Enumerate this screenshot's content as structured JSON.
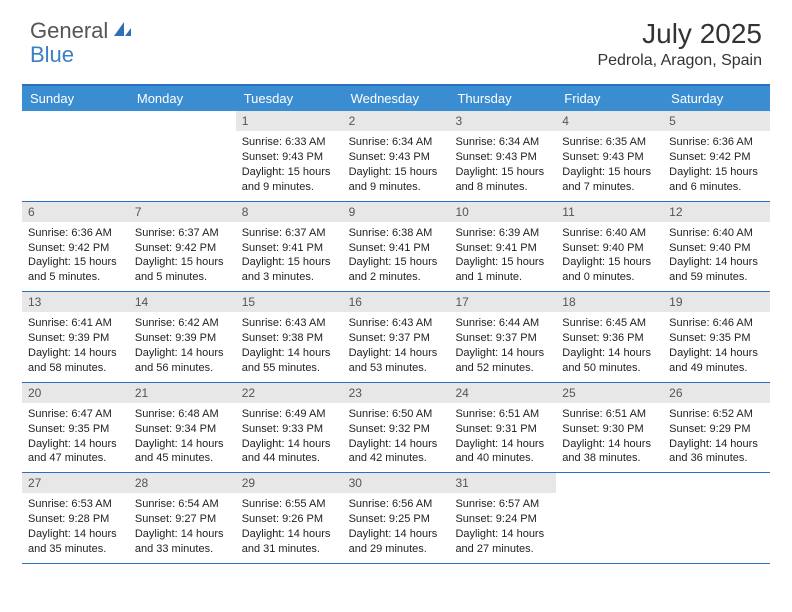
{
  "brand": {
    "part1": "General",
    "part2": "Blue"
  },
  "title": "July 2025",
  "location": "Pedrola, Aragon, Spain",
  "colors": {
    "header_bar": "#3b8dd1",
    "border": "#2b6fbf",
    "daynum_bg": "#e7e7e7",
    "brand_blue": "#3b7fc4",
    "text": "#333333"
  },
  "fonts": {
    "title_size": 28,
    "location_size": 16,
    "header_size": 13,
    "cell_size": 11
  },
  "day_headers": [
    "Sunday",
    "Monday",
    "Tuesday",
    "Wednesday",
    "Thursday",
    "Friday",
    "Saturday"
  ],
  "weeks": [
    [
      {
        "empty": true
      },
      {
        "empty": true
      },
      {
        "num": "1",
        "sunrise": "Sunrise: 6:33 AM",
        "sunset": "Sunset: 9:43 PM",
        "daylight": "Daylight: 15 hours and 9 minutes."
      },
      {
        "num": "2",
        "sunrise": "Sunrise: 6:34 AM",
        "sunset": "Sunset: 9:43 PM",
        "daylight": "Daylight: 15 hours and 9 minutes."
      },
      {
        "num": "3",
        "sunrise": "Sunrise: 6:34 AM",
        "sunset": "Sunset: 9:43 PM",
        "daylight": "Daylight: 15 hours and 8 minutes."
      },
      {
        "num": "4",
        "sunrise": "Sunrise: 6:35 AM",
        "sunset": "Sunset: 9:43 PM",
        "daylight": "Daylight: 15 hours and 7 minutes."
      },
      {
        "num": "5",
        "sunrise": "Sunrise: 6:36 AM",
        "sunset": "Sunset: 9:42 PM",
        "daylight": "Daylight: 15 hours and 6 minutes."
      }
    ],
    [
      {
        "num": "6",
        "sunrise": "Sunrise: 6:36 AM",
        "sunset": "Sunset: 9:42 PM",
        "daylight": "Daylight: 15 hours and 5 minutes."
      },
      {
        "num": "7",
        "sunrise": "Sunrise: 6:37 AM",
        "sunset": "Sunset: 9:42 PM",
        "daylight": "Daylight: 15 hours and 5 minutes."
      },
      {
        "num": "8",
        "sunrise": "Sunrise: 6:37 AM",
        "sunset": "Sunset: 9:41 PM",
        "daylight": "Daylight: 15 hours and 3 minutes."
      },
      {
        "num": "9",
        "sunrise": "Sunrise: 6:38 AM",
        "sunset": "Sunset: 9:41 PM",
        "daylight": "Daylight: 15 hours and 2 minutes."
      },
      {
        "num": "10",
        "sunrise": "Sunrise: 6:39 AM",
        "sunset": "Sunset: 9:41 PM",
        "daylight": "Daylight: 15 hours and 1 minute."
      },
      {
        "num": "11",
        "sunrise": "Sunrise: 6:40 AM",
        "sunset": "Sunset: 9:40 PM",
        "daylight": "Daylight: 15 hours and 0 minutes."
      },
      {
        "num": "12",
        "sunrise": "Sunrise: 6:40 AM",
        "sunset": "Sunset: 9:40 PM",
        "daylight": "Daylight: 14 hours and 59 minutes."
      }
    ],
    [
      {
        "num": "13",
        "sunrise": "Sunrise: 6:41 AM",
        "sunset": "Sunset: 9:39 PM",
        "daylight": "Daylight: 14 hours and 58 minutes."
      },
      {
        "num": "14",
        "sunrise": "Sunrise: 6:42 AM",
        "sunset": "Sunset: 9:39 PM",
        "daylight": "Daylight: 14 hours and 56 minutes."
      },
      {
        "num": "15",
        "sunrise": "Sunrise: 6:43 AM",
        "sunset": "Sunset: 9:38 PM",
        "daylight": "Daylight: 14 hours and 55 minutes."
      },
      {
        "num": "16",
        "sunrise": "Sunrise: 6:43 AM",
        "sunset": "Sunset: 9:37 PM",
        "daylight": "Daylight: 14 hours and 53 minutes."
      },
      {
        "num": "17",
        "sunrise": "Sunrise: 6:44 AM",
        "sunset": "Sunset: 9:37 PM",
        "daylight": "Daylight: 14 hours and 52 minutes."
      },
      {
        "num": "18",
        "sunrise": "Sunrise: 6:45 AM",
        "sunset": "Sunset: 9:36 PM",
        "daylight": "Daylight: 14 hours and 50 minutes."
      },
      {
        "num": "19",
        "sunrise": "Sunrise: 6:46 AM",
        "sunset": "Sunset: 9:35 PM",
        "daylight": "Daylight: 14 hours and 49 minutes."
      }
    ],
    [
      {
        "num": "20",
        "sunrise": "Sunrise: 6:47 AM",
        "sunset": "Sunset: 9:35 PM",
        "daylight": "Daylight: 14 hours and 47 minutes."
      },
      {
        "num": "21",
        "sunrise": "Sunrise: 6:48 AM",
        "sunset": "Sunset: 9:34 PM",
        "daylight": "Daylight: 14 hours and 45 minutes."
      },
      {
        "num": "22",
        "sunrise": "Sunrise: 6:49 AM",
        "sunset": "Sunset: 9:33 PM",
        "daylight": "Daylight: 14 hours and 44 minutes."
      },
      {
        "num": "23",
        "sunrise": "Sunrise: 6:50 AM",
        "sunset": "Sunset: 9:32 PM",
        "daylight": "Daylight: 14 hours and 42 minutes."
      },
      {
        "num": "24",
        "sunrise": "Sunrise: 6:51 AM",
        "sunset": "Sunset: 9:31 PM",
        "daylight": "Daylight: 14 hours and 40 minutes."
      },
      {
        "num": "25",
        "sunrise": "Sunrise: 6:51 AM",
        "sunset": "Sunset: 9:30 PM",
        "daylight": "Daylight: 14 hours and 38 minutes."
      },
      {
        "num": "26",
        "sunrise": "Sunrise: 6:52 AM",
        "sunset": "Sunset: 9:29 PM",
        "daylight": "Daylight: 14 hours and 36 minutes."
      }
    ],
    [
      {
        "num": "27",
        "sunrise": "Sunrise: 6:53 AM",
        "sunset": "Sunset: 9:28 PM",
        "daylight": "Daylight: 14 hours and 35 minutes."
      },
      {
        "num": "28",
        "sunrise": "Sunrise: 6:54 AM",
        "sunset": "Sunset: 9:27 PM",
        "daylight": "Daylight: 14 hours and 33 minutes."
      },
      {
        "num": "29",
        "sunrise": "Sunrise: 6:55 AM",
        "sunset": "Sunset: 9:26 PM",
        "daylight": "Daylight: 14 hours and 31 minutes."
      },
      {
        "num": "30",
        "sunrise": "Sunrise: 6:56 AM",
        "sunset": "Sunset: 9:25 PM",
        "daylight": "Daylight: 14 hours and 29 minutes."
      },
      {
        "num": "31",
        "sunrise": "Sunrise: 6:57 AM",
        "sunset": "Sunset: 9:24 PM",
        "daylight": "Daylight: 14 hours and 27 minutes."
      },
      {
        "empty": true
      },
      {
        "empty": true
      }
    ]
  ]
}
